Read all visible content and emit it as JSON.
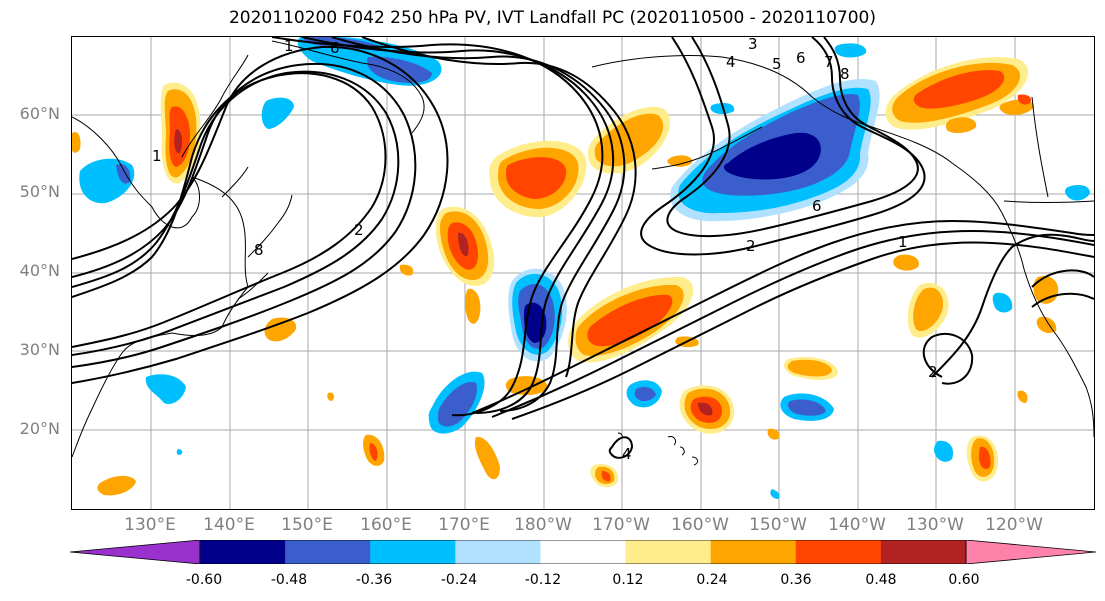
{
  "title": "2020110200 F042 250 hPa PV, IVT Landfall PC (2020110500 - 2020110700)",
  "lat_labels": [
    "60°N",
    "50°N",
    "40°N",
    "30°N",
    "20°N"
  ],
  "lon_labels": [
    "130°E",
    "140°E",
    "150°E",
    "160°E",
    "170°E",
    "180°W",
    "170°W",
    "160°W",
    "150°W",
    "140°W",
    "130°W",
    "120°W"
  ],
  "contour_labels": [
    "1",
    "6",
    "8",
    "2",
    "4",
    "3",
    "5",
    "6",
    "7",
    "8",
    "6",
    "2",
    "1",
    "2",
    "4",
    "1"
  ],
  "colorbar": {
    "colors": [
      "#9932CC",
      "#00008B",
      "#3A5FCD",
      "#00BFFF",
      "#B0E2FF",
      "#FFFFFF",
      "#FFEC8B",
      "#FFA500",
      "#FF4500",
      "#B22222",
      "#FF82AB"
    ],
    "ticks": [
      "-0.60",
      "-0.48",
      "-0.36",
      "-0.24",
      "-0.12",
      "0.12",
      "0.24",
      "0.36",
      "0.48",
      "0.60"
    ]
  },
  "colors": {
    "grid": "#aaaaaa",
    "coast": "#000000",
    "contour": "#000000",
    "label": "#808080"
  }
}
